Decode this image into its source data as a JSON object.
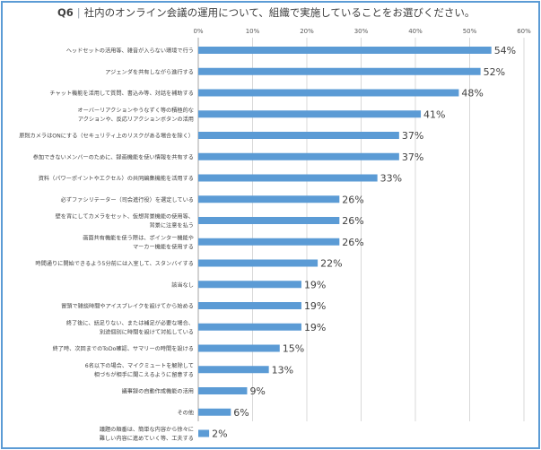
{
  "chart_data": {
    "type": "bar",
    "orientation": "horizontal",
    "question_label": "Q6",
    "title": "社内のオンライン会議の運用について、組織で実施していることをお選びください。",
    "xlim": [
      0,
      60
    ],
    "x_ticks": [
      "0%",
      "10%",
      "20%",
      "30%",
      "40%",
      "50%",
      "60%"
    ],
    "grid": true,
    "bar_color": "#5b9bd5",
    "categories": [
      [
        "ヘッドセットの活用等、雑音が入らない環境で行う"
      ],
      [
        "アジェンダを共有しながら進行する"
      ],
      [
        "チャット機能を活用して質問、書込み等、対話を補助する"
      ],
      [
        "オーバーリアクションやうなずく等の積極的な",
        "アクションや、反応リアクションボタンの活用"
      ],
      [
        "原則カメラはONにする（セキュリティ上のリスクがある場合を除く）"
      ],
      [
        "参加できないメンバーのために、録画機能を使い情報を共有する"
      ],
      [
        "資料（パワーポイントやエクセル）の共同編集機能を活用する"
      ],
      [
        "必ずファシリテーター（司会進行役）を選定している"
      ],
      [
        "壁を背にしてカメラをセット、仮想背景機能の使用等、",
        "背景に注意を払う"
      ],
      [
        "画面共有機能を使う際は、ポインター機能や",
        "マーカー機能を使用する"
      ],
      [
        "時間通りに開始できるよう5分前には入室して、スタンバイする"
      ],
      [
        "該当なし"
      ],
      [
        "冒頭で雑談時間やアイスブレイクを設けてから始める"
      ],
      [
        "終了後に、話足りない、または補足が必要な場合、",
        "別途個別に時間を設けて対処している"
      ],
      [
        "終了時、次回までのToDo確認、サマリーの時間を設ける"
      ],
      [
        "6名以下の場合、マイクミュートを解除して",
        "相づちが相手に聞こえるように留意する"
      ],
      [
        "議事録の自動作成機能の活用"
      ],
      [
        "その他"
      ],
      [
        "議題の順番は、簡単な内容から徐々に",
        "難しい内容に進めていく等、工夫する"
      ]
    ],
    "values": [
      54,
      52,
      48,
      41,
      37,
      37,
      33,
      26,
      26,
      26,
      22,
      19,
      19,
      19,
      15,
      13,
      9,
      6,
      2
    ],
    "data_labels": [
      "54%",
      "52%",
      "48%",
      "41%",
      "37%",
      "37%",
      "33%",
      "26%",
      "26%",
      "26%",
      "22%",
      "19%",
      "19%",
      "19%",
      "15%",
      "13%",
      "9%",
      "6%",
      "2%"
    ]
  }
}
